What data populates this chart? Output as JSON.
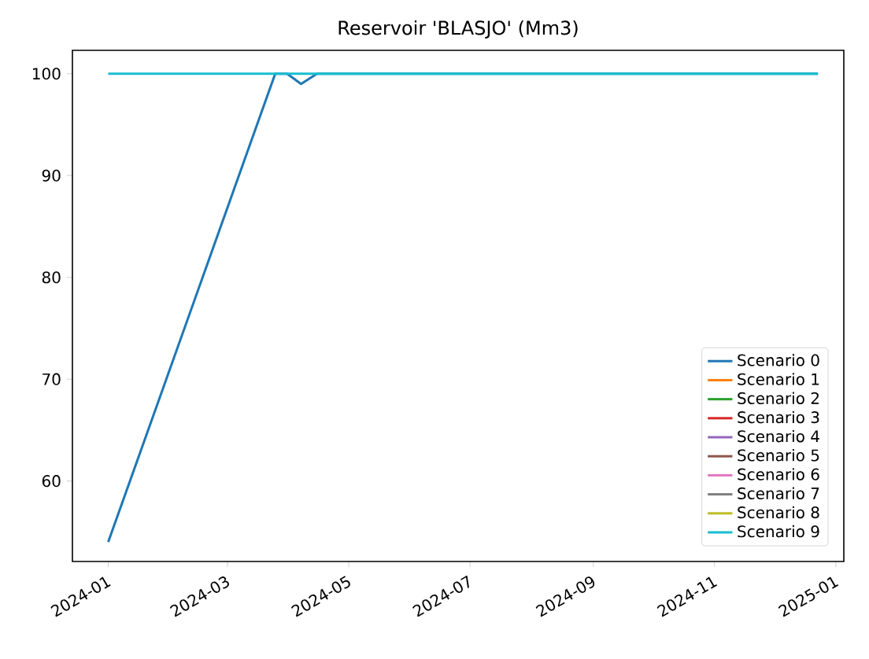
{
  "chart_data": {
    "type": "line",
    "title": "Reservoir 'BLASJO' (Mm3)",
    "xlim": [
      "2023-12-14",
      "2025-01-05"
    ],
    "ylim": [
      52.1,
      102.3
    ],
    "xticks": [
      "2024-01",
      "2024-03",
      "2024-05",
      "2024-07",
      "2024-09",
      "2024-11",
      "2025-01"
    ],
    "yticks": [
      60,
      70,
      80,
      90,
      100
    ],
    "legend": "bottom right",
    "grid": false,
    "marker": "none",
    "line_style": "solid",
    "series": [
      {
        "name": "Scenario 0",
        "color": "#1f77b4",
        "x": [
          "2024-01-01",
          "2024-03-25",
          "2024-03-31",
          "2024-04-07",
          "2024-04-15",
          "2024-12-23"
        ],
        "values": [
          54,
          100,
          100,
          99,
          100,
          100
        ]
      },
      {
        "name": "Scenario 1",
        "color": "#ff7f0e"
      },
      {
        "name": "Scenario 2",
        "color": "#2ca02c"
      },
      {
        "name": "Scenario 3",
        "color": "#d62728"
      },
      {
        "name": "Scenario 4",
        "color": "#9467bd"
      },
      {
        "name": "Scenario 5",
        "color": "#8c564b"
      },
      {
        "name": "Scenario 6",
        "color": "#e377c2"
      },
      {
        "name": "Scenario 7",
        "color": "#7f7f7f"
      },
      {
        "name": "Scenario 8",
        "color": "#bcbd22"
      },
      {
        "name": "Scenario 9",
        "color": "#17becf",
        "x": [
          "2024-01-01",
          "2024-12-23"
        ],
        "values": [
          100,
          100
        ]
      }
    ]
  }
}
